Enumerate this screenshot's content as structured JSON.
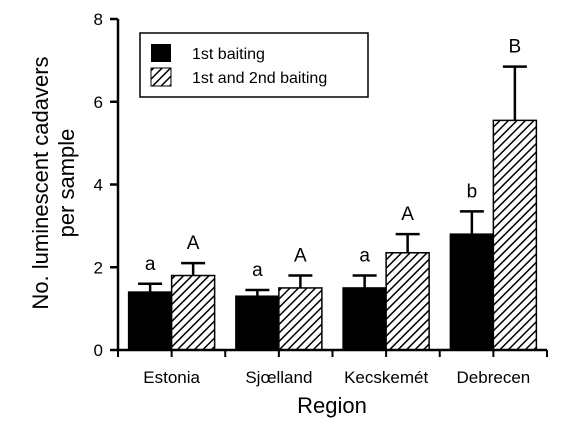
{
  "chart_data": {
    "type": "bar",
    "title": "",
    "xlabel": "Region",
    "ylabel": [
      "No. luminescent cadavers",
      "per sample"
    ],
    "ylim": [
      0,
      8
    ],
    "yticks": [
      "0",
      "2",
      "4",
      "6",
      "8"
    ],
    "categories": [
      "Estonia",
      "Sjœlland",
      "Kecskemét",
      "Debrecen"
    ],
    "series": [
      {
        "name": "1st baiting",
        "values": [
          1.4,
          1.3,
          1.5,
          2.8
        ],
        "errors": [
          0.2,
          0.15,
          0.3,
          0.55
        ],
        "sig_labels": [
          "a",
          "a",
          "a",
          "b"
        ],
        "fill": "#000000"
      },
      {
        "name": "1st and 2nd baiting",
        "values": [
          1.8,
          1.5,
          2.35,
          5.55
        ],
        "errors": [
          0.3,
          0.3,
          0.45,
          1.3
        ],
        "sig_labels": [
          "A",
          "A",
          "A",
          "B"
        ],
        "fill": "hatched"
      }
    ],
    "legend_position": "top-left",
    "grid": false
  }
}
